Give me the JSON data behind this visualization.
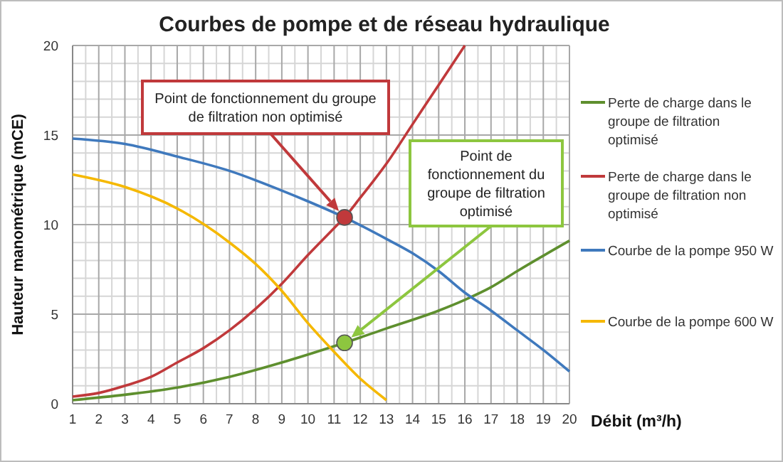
{
  "chart_data": {
    "type": "line",
    "title": "Courbes de pompe et de réseau hydraulique",
    "xlabel": "Débit (m³/h)",
    "ylabel": "Hauteur manométrique  (mCE)",
    "xlim": [
      1,
      20
    ],
    "xticks": [
      1,
      2,
      3,
      4,
      5,
      6,
      7,
      8,
      9,
      10,
      11,
      12,
      13,
      14,
      15,
      16,
      17,
      18,
      19,
      20
    ],
    "ylim": [
      0,
      20
    ],
    "yticks": [
      0,
      5,
      10,
      15,
      20
    ],
    "grid": true,
    "legend": "right",
    "marker": "none",
    "series": [
      {
        "name": "Perte de charge dans le groupe de filtration optimisé",
        "color": "#5e8f2e",
        "x": [
          1,
          3,
          5,
          7,
          9,
          11.4,
          13,
          15,
          16,
          17,
          18,
          20
        ],
        "values": [
          0.2,
          0.5,
          0.9,
          1.5,
          2.3,
          3.4,
          4.2,
          5.2,
          5.8,
          6.5,
          7.4,
          9.1
        ]
      },
      {
        "name": "Perte de charge dans le groupe de filtration non optimisé",
        "color": "#c0393b",
        "x": [
          1,
          2,
          3,
          4,
          5,
          6,
          7,
          8,
          9,
          10,
          11,
          11.4,
          12,
          13,
          14,
          15,
          16
        ],
        "values": [
          0.4,
          0.6,
          1.0,
          1.5,
          2.3,
          3.1,
          4.1,
          5.3,
          6.7,
          8.3,
          9.8,
          10.4,
          11.5,
          13.4,
          15.6,
          17.8,
          20
        ]
      },
      {
        "name": "Courbe de la pompe 950 W",
        "color": "#3f79bd",
        "x": [
          1,
          3,
          5,
          7,
          9,
          10,
          11.4,
          13,
          14,
          15,
          16,
          17,
          18,
          19,
          20
        ],
        "values": [
          14.8,
          14.5,
          13.8,
          13.0,
          11.9,
          11.3,
          10.4,
          9.2,
          8.4,
          7.4,
          6.2,
          5.2,
          4.1,
          3.0,
          1.8
        ]
      },
      {
        "name": "Courbe de la pompe 600 W",
        "color": "#f5b800",
        "x": [
          1,
          3,
          5,
          7,
          8,
          9,
          10,
          11,
          12,
          13
        ],
        "values": [
          12.8,
          12.1,
          10.9,
          9.0,
          7.8,
          6.3,
          4.5,
          2.9,
          1.4,
          0.2
        ]
      },
      {
        "type": "scatter",
        "marker": "circle",
        "color": "#c0393b",
        "x": [
          11.4
        ],
        "values": [
          10.4
        ]
      },
      {
        "type": "scatter",
        "marker": "circle",
        "color": "#8dc63f",
        "x": [
          11.4
        ],
        "values": [
          3.4
        ]
      }
    ],
    "annotations": [
      "Point de fonctionnement du groupe de filtration non optimisé",
      "Point de fonctionnement du groupe de filtration optimisé"
    ]
  }
}
